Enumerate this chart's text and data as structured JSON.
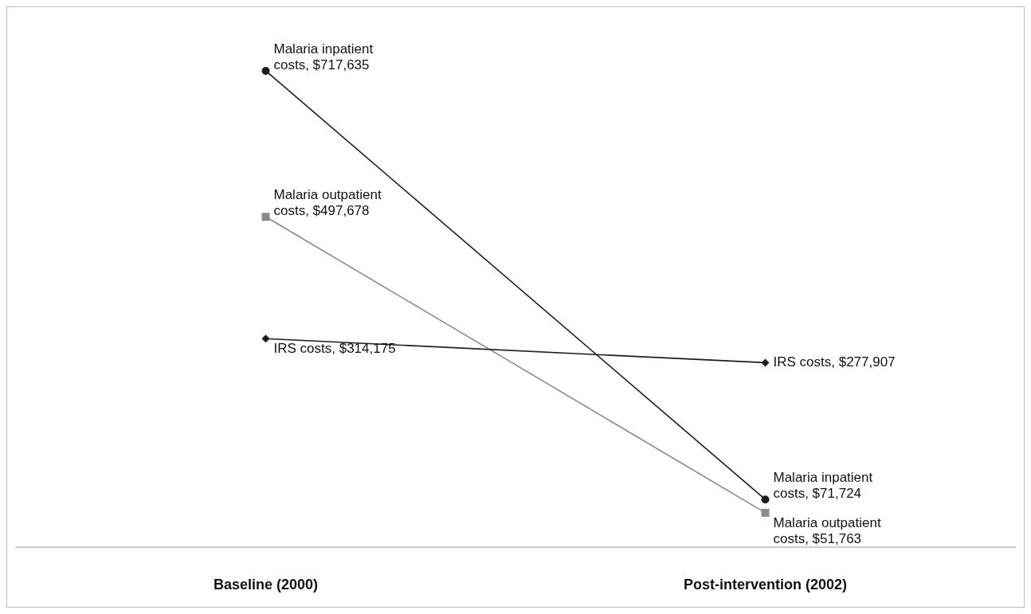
{
  "chart_data": {
    "type": "line",
    "categories": [
      "Baseline (2000)",
      "Post-intervention (2002)"
    ],
    "series": [
      {
        "color": "#1c1c1c",
        "marker": "circle",
        "values": [
          717635,
          71724
        ],
        "value_labels": [
          "Malaria inpatient costs, $717,635",
          "Malaria inpatient costs, $71,724"
        ]
      },
      {
        "color": "#8a8a8a",
        "marker": "square",
        "values": [
          497678,
          51763
        ],
        "value_labels": [
          "Malaria outpatient costs, $497,678",
          "Malaria outpatient costs, $51,763"
        ]
      },
      {
        "color": "#1c1c1c",
        "marker": "diamond",
        "values": [
          314175,
          277907
        ],
        "value_labels": [
          "IRS costs, $314,175",
          "IRS costs, $277,907"
        ]
      }
    ],
    "grid": false,
    "legend": false
  }
}
